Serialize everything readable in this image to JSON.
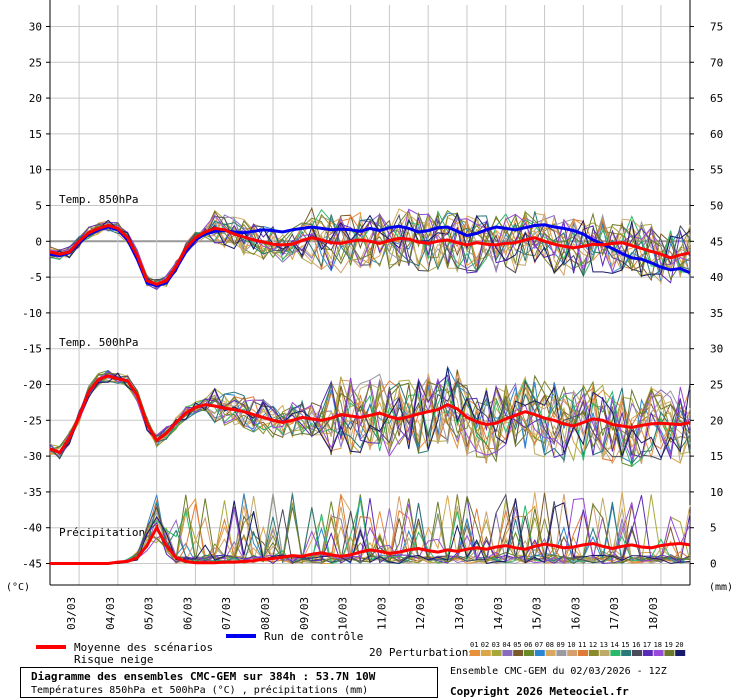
{
  "chart_data": {
    "type": "line",
    "title": "Diagramme des ensembles CMC-GEM sur 384h : 53.7N 10W",
    "subtitle": "Températures 850hPa et 500hPa (°C) , précipitations (mm)",
    "left_unit": "(°C)",
    "right_unit": "(mm)",
    "left_ticks": [
      30,
      25,
      20,
      15,
      10,
      5,
      0,
      -5,
      -10,
      -15,
      -20,
      -25,
      -30,
      -35,
      -40,
      -45
    ],
    "right_ticks": [
      75,
      70,
      65,
      60,
      55,
      50,
      45,
      40,
      35,
      30,
      25,
      20,
      15,
      10,
      5,
      0
    ],
    "ylim": [
      -48,
      33
    ],
    "x_ticks": [
      "03/03",
      "04/03",
      "05/03",
      "06/03",
      "07/03",
      "08/03",
      "09/03",
      "10/03",
      "11/03",
      "12/03",
      "13/03",
      "14/03",
      "15/03",
      "16/03",
      "17/03",
      "18/03"
    ],
    "x_tick_values": [
      6,
      30,
      54,
      78,
      102,
      126,
      150,
      174,
      198,
      222,
      246,
      270,
      294,
      318,
      342,
      366
    ],
    "xlim": [
      -12,
      384
    ],
    "section_labels": {
      "t850": "Temp. 850hPa",
      "t500": "Temp. 500hPa",
      "precip": "Précipitations"
    },
    "x": [
      -12,
      -6,
      0,
      6,
      12,
      18,
      24,
      30,
      36,
      42,
      48,
      54,
      60,
      66,
      72,
      78,
      84,
      90,
      96,
      102,
      108,
      114,
      120,
      126,
      132,
      138,
      144,
      150,
      156,
      162,
      168,
      174,
      180,
      186,
      192,
      198,
      204,
      210,
      216,
      222,
      228,
      234,
      240,
      246,
      252,
      258,
      264,
      270,
      276,
      282,
      288,
      294,
      300,
      306,
      312,
      318,
      324,
      330,
      336,
      342,
      348,
      354,
      360,
      366,
      372,
      378,
      384
    ],
    "series": [
      {
        "name": "Moyenne des scénarios (850hPa)",
        "values": [
          -1.5,
          -1.8,
          -1.5,
          0,
          1.2,
          1.8,
          2.2,
          1.8,
          0.5,
          -2,
          -5.5,
          -6,
          -5.5,
          -3.5,
          -1,
          0.5,
          1.3,
          1.8,
          1.6,
          1,
          0.6,
          0.2,
          -0.1,
          -0.4,
          -0.5,
          -0.4,
          0.1,
          0.5,
          0.2,
          -0.2,
          -0.3,
          0,
          0.2,
          0,
          -0.3,
          0.1,
          0.4,
          0.3,
          -0.1,
          -0.3,
          0,
          0.2,
          -0.2,
          -0.5,
          -0.2,
          -0.4,
          -0.5,
          -0.3,
          -0.2,
          0.2,
          0.5,
          0,
          -0.4,
          -0.7,
          -0.9,
          -0.7,
          -0.4,
          -0.5,
          -0.3,
          -0.2,
          -0.6,
          -1,
          -1.4,
          -1.8,
          -2.3,
          -1.9,
          -1.6
        ]
      },
      {
        "name": "Run de contrôle (850hPa)",
        "values": [
          -1.8,
          -2,
          -1.6,
          -0.2,
          1,
          1.6,
          2,
          1.6,
          0.2,
          -2.5,
          -5.8,
          -6.2,
          -5.8,
          -3.8,
          -1.5,
          0.2,
          1,
          1.4,
          1.5,
          1.3,
          1.2,
          1.4,
          1.6,
          1.5,
          1.3,
          1.6,
          1.8,
          2,
          1.8,
          1.6,
          1.7,
          1.6,
          1.4,
          1.8,
          1.5,
          1.9,
          2.1,
          1.8,
          1.3,
          1.5,
          1.9,
          2,
          1.4,
          0.8,
          1.1,
          1.6,
          2,
          1.8,
          1.6,
          1.9,
          2.2,
          2.3,
          2,
          1.8,
          1.5,
          1,
          0.2,
          -0.4,
          -1,
          -1.7,
          -2.3,
          -2.5,
          -3,
          -3.6,
          -4,
          -3.8,
          -4.4
        ]
      },
      {
        "name": "Moyenne des scénarios (500hPa)",
        "values": [
          -29,
          -29.5,
          -27.5,
          -24.5,
          -21,
          -19.3,
          -18.8,
          -19.2,
          -19.5,
          -21.5,
          -25.5,
          -27.8,
          -26.8,
          -25.3,
          -24,
          -23.2,
          -22.8,
          -23,
          -23.3,
          -23.5,
          -23.8,
          -24.2,
          -24.6,
          -25,
          -25.3,
          -25,
          -24.6,
          -24.8,
          -25,
          -24.7,
          -24.2,
          -24.4,
          -24.6,
          -24.3,
          -24,
          -24.5,
          -24.8,
          -24.5,
          -24.1,
          -23.8,
          -23.5,
          -22.8,
          -23.4,
          -24.6,
          -25.2,
          -25.6,
          -25.4,
          -24.8,
          -24.3,
          -23.8,
          -24.2,
          -24.7,
          -25,
          -25.5,
          -25.8,
          -25.3,
          -24.8,
          -25,
          -25.6,
          -25.8,
          -26,
          -25.7,
          -25.5,
          -25.4,
          -25.5,
          -25.6,
          -25.3
        ]
      },
      {
        "name": "Moyenne des scénarios (précipitations)",
        "values": [
          0,
          0,
          0,
          0,
          0,
          0,
          0,
          0.2,
          0.3,
          0.8,
          2.5,
          5,
          2.5,
          0.8,
          0.3,
          0.1,
          0.1,
          0.1,
          0.2,
          0.2,
          0.3,
          0.4,
          0.6,
          0.7,
          0.9,
          1.1,
          1.0,
          1.3,
          1.5,
          1.2,
          1.0,
          1.2,
          1.6,
          1.9,
          1.7,
          1.4,
          1.6,
          1.9,
          2.1,
          1.8,
          1.6,
          1.9,
          1.7,
          2.0,
          2.2,
          2.0,
          2.3,
          2.5,
          2.2,
          2.0,
          2.4,
          2.7,
          2.5,
          2.2,
          2.3,
          2.6,
          2.8,
          2.4,
          2.1,
          2.4,
          2.6,
          2.3,
          2.2,
          2.5,
          2.7,
          2.8,
          2.6
        ]
      }
    ],
    "perturbation_count": 20,
    "perturbation_colors": [
      "#e8903a",
      "#d9a64a",
      "#a8a83a",
      "#8a6cbf",
      "#7a5a2a",
      "#6a8a2a",
      "#2a86d0",
      "#d8a860",
      "#9a9aa0",
      "#d4a070",
      "#e07a38",
      "#8a8a2a",
      "#c0aa6a",
      "#2ab86a",
      "#2a7a7a",
      "#4a4a5a",
      "#5a2ab8",
      "#9a4ad8",
      "#6a7a2a",
      "#1a1a6a"
    ],
    "legend": {
      "mean_label": "Moyenne des scénarios",
      "snow_label": "Risque neige",
      "control_label": "Run de contrôle",
      "perturbations_label": "20 Perturbations",
      "perturbation_numbers": [
        "01",
        "02",
        "03",
        "04",
        "05",
        "06",
        "07",
        "08",
        "09",
        "10",
        "11",
        "12",
        "13",
        "14",
        "15",
        "16",
        "17",
        "18",
        "19",
        "20"
      ]
    },
    "colors": {
      "mean": "#ff0000",
      "control": "#0000ee",
      "grid": "#c8c8c8",
      "zero_line": "#999999"
    }
  },
  "footer": {
    "title": "Diagramme des ensembles CMC-GEM sur 384h : 53.7N 10W",
    "subtitle": "Températures 850hPa et 500hPa (°C) , précipitations (mm)",
    "ensemble_date": "Ensemble CMC-GEM du 02/03/2026 - 12Z",
    "copyright": "Copyright 2026 Meteociel.fr"
  }
}
